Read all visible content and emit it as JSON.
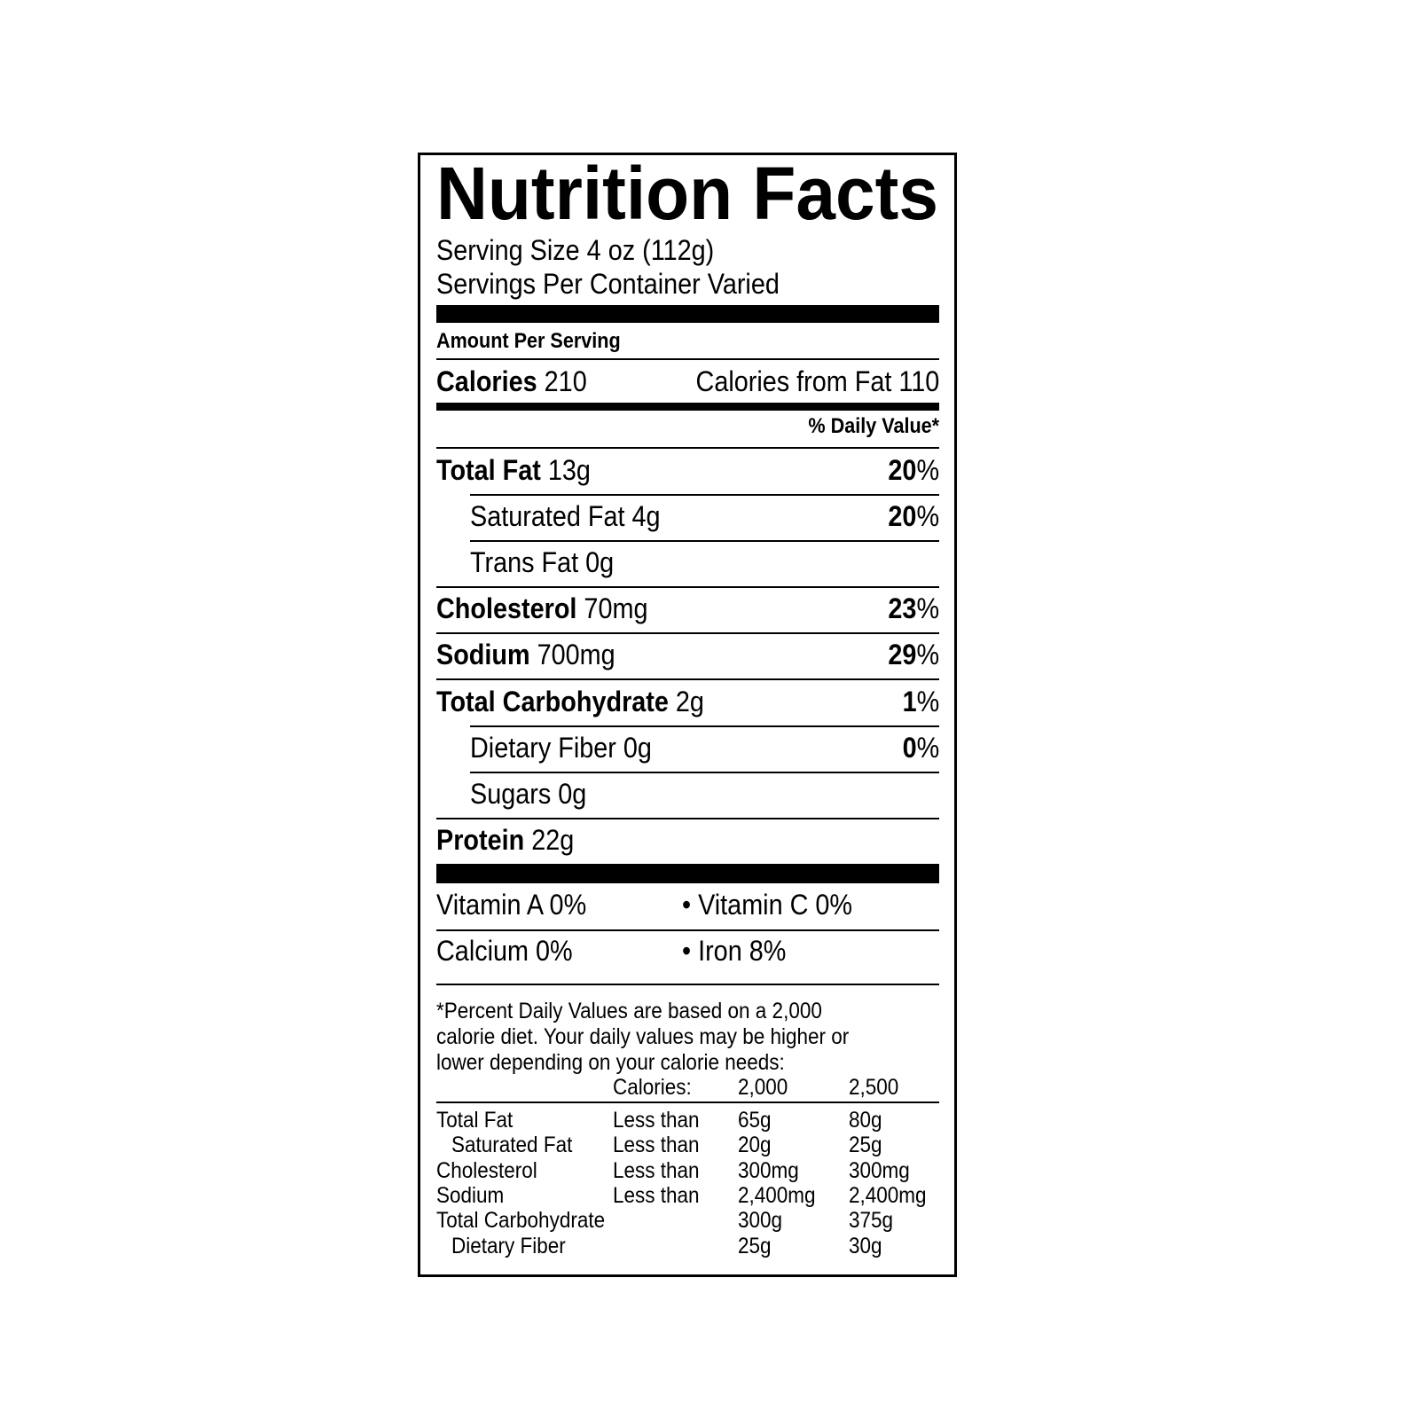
{
  "title": "Nutrition Facts",
  "serving_size": "Serving Size 4 oz (112g)",
  "servings_per_container": "Servings Per Container Varied",
  "amount_per_serving": "Amount Per Serving",
  "calories": {
    "label": "Calories",
    "value": "210",
    "from_fat": "Calories from Fat 110"
  },
  "daily_value_header": "% Daily Value*",
  "nutrients": [
    {
      "label": "Total Fat",
      "amount": "13g",
      "dv": "20",
      "pct": "%"
    },
    {
      "label": "Saturated Fat 4g",
      "dv": "20",
      "pct": "%"
    },
    {
      "label": "Trans Fat 0g"
    },
    {
      "label": "Cholesterol",
      "amount": "70mg",
      "dv": "23",
      "pct": "%"
    },
    {
      "label": "Sodium",
      "amount": "700mg",
      "dv": "29",
      "pct": "%"
    },
    {
      "label": "Total Carbohydrate",
      "amount": "2g",
      "dv": "1",
      "pct": "%"
    },
    {
      "label": "Dietary Fiber 0g",
      "dv": "0",
      "pct": "%"
    },
    {
      "label": "Sugars 0g"
    },
    {
      "label": "Protein",
      "amount": "22g"
    }
  ],
  "vitamins": [
    {
      "left": "Vitamin A 0%",
      "right": "• Vitamin C 0%"
    },
    {
      "left": "Calcium 0%",
      "right": "• Iron 8%"
    }
  ],
  "footnote": [
    "*Percent Daily Values are based on a 2,000",
    "calorie diet. Your daily values may be higher or",
    "lower depending on your calorie needs:"
  ],
  "table": {
    "header": [
      "Calories:",
      "2,000",
      "2,500"
    ],
    "rows": [
      [
        "Total Fat",
        "Less than",
        "65g",
        "80g"
      ],
      [
        "Saturated Fat",
        "Less than",
        "20g",
        "25g"
      ],
      [
        "Cholesterol",
        "Less than",
        "300mg",
        "300mg"
      ],
      [
        "Sodium",
        "Less than",
        "2,400mg",
        "2,400mg"
      ],
      [
        "Total Carbohydrate",
        "",
        "300g",
        "375g"
      ],
      [
        "Dietary Fiber",
        "",
        "25g",
        "30g"
      ]
    ]
  }
}
